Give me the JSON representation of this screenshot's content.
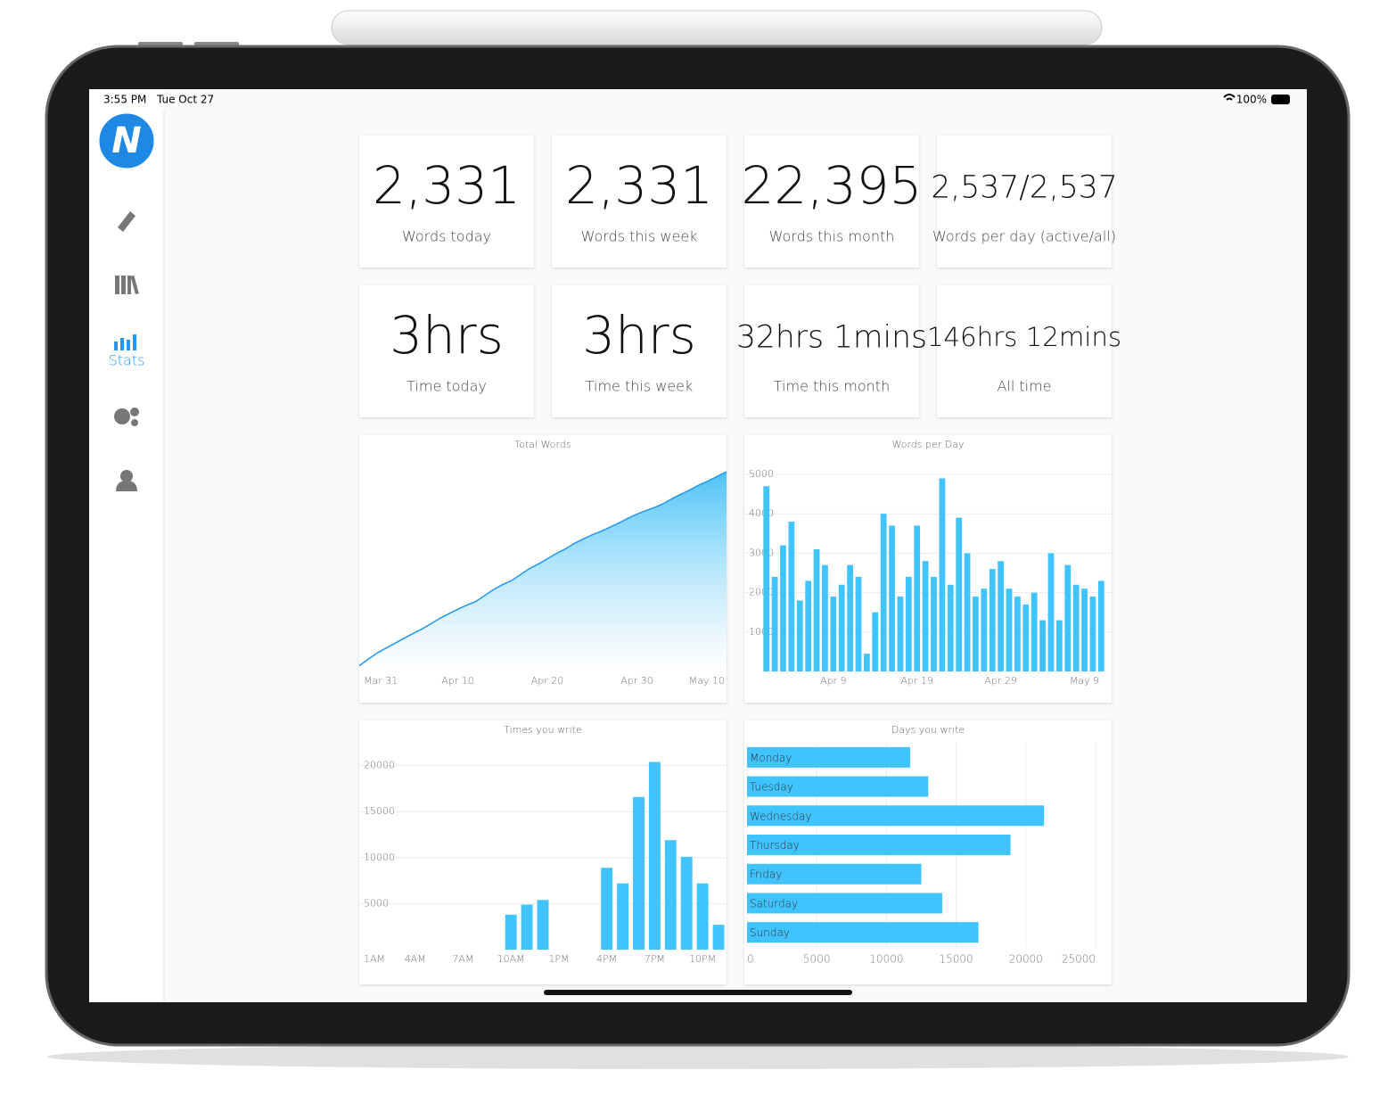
{
  "status": {
    "time": "3:55 PM",
    "date": "Tue Oct 27",
    "battery": "100%"
  },
  "sidebar": {
    "logo": "N",
    "active_item": "Stats"
  },
  "cards": [
    {
      "value": "2,331",
      "label": "Words today"
    },
    {
      "value": "2,331",
      "label": "Words this week"
    },
    {
      "value": "22,395",
      "label": "Words this month"
    },
    {
      "value": "2,537/2,537",
      "label": "Words per day (active/all)"
    },
    {
      "value": "3hrs",
      "label": "Time today"
    },
    {
      "value": "3hrs",
      "label": "Time this week"
    },
    {
      "value": "32hrs 1mins",
      "label": "Time this month"
    },
    {
      "value": "146hrs 12mins",
      "label": "All time"
    }
  ],
  "chart_data": [
    {
      "type": "area",
      "title": "Total Words",
      "color": "#2196f3",
      "categories": [
        null,
        "Mar 31",
        null,
        null,
        null,
        null,
        null,
        null,
        null,
        null,
        null,
        "Apr 10",
        null,
        null,
        null,
        null,
        null,
        null,
        null,
        null,
        null,
        "Apr 20",
        null,
        null,
        null,
        null,
        null,
        null,
        null,
        null,
        null,
        "Apr 30",
        null,
        null,
        null,
        null,
        null,
        null,
        null,
        null,
        null,
        "May 10"
      ],
      "values": [
        3000,
        6500,
        9800,
        12400,
        15000,
        17600,
        20100,
        22500,
        25300,
        28200,
        30600,
        33000,
        35200,
        37100,
        40300,
        43500,
        46100,
        48200,
        51400,
        54600,
        57000,
        59800,
        62600,
        65000,
        67900,
        70300,
        72500,
        74400,
        76600,
        78800,
        81300,
        83500,
        85400,
        87100,
        89200,
        91900,
        94300,
        96600,
        99100,
        101200,
        103600,
        106000
      ],
      "ylim": [
        0,
        115000
      ]
    },
    {
      "type": "bar",
      "title": "Words per Day",
      "color": "#40c4ff",
      "categories": [
        null,
        null,
        null,
        null,
        null,
        null,
        null,
        null,
        "Apr 9",
        null,
        null,
        null,
        null,
        null,
        null,
        null,
        null,
        null,
        "Apr 19",
        null,
        null,
        null,
        null,
        null,
        null,
        null,
        null,
        null,
        "Apr 29",
        null,
        null,
        null,
        null,
        null,
        null,
        null,
        null,
        null,
        "May 9",
        null,
        null
      ],
      "values": [
        4700,
        2400,
        3200,
        3800,
        1800,
        2300,
        3100,
        2700,
        1900,
        2200,
        2700,
        2400,
        450,
        1500,
        4000,
        3700,
        1900,
        2400,
        3700,
        2800,
        2400,
        4900,
        2200,
        3900,
        3000,
        1900,
        2100,
        2600,
        2800,
        2100,
        1900,
        1700,
        2000,
        1300,
        3000,
        1300,
        2700,
        2200,
        2100,
        1900,
        2300
      ],
      "ylim": [
        0,
        5000
      ],
      "yticks": [
        1000,
        2000,
        3000,
        4000,
        5000
      ],
      "grid": true
    },
    {
      "type": "bar",
      "title": "Times you write",
      "color": "#40c4ff",
      "categories": [
        "1AM",
        null,
        null,
        "4AM",
        null,
        null,
        "7AM",
        null,
        null,
        "10AM",
        null,
        null,
        "1PM",
        null,
        null,
        "4PM",
        null,
        null,
        "7PM",
        null,
        null,
        "10PM",
        null
      ],
      "values": [
        0,
        0,
        0,
        0,
        0,
        0,
        0,
        0,
        0,
        3800,
        4900,
        5400,
        0,
        0,
        0,
        8900,
        7200,
        16600,
        20400,
        11900,
        10100,
        7200,
        2700
      ],
      "ylim": [
        0,
        22000
      ],
      "yticks": [
        5000,
        10000,
        15000,
        20000
      ],
      "grid": true
    },
    {
      "type": "barh",
      "title": "Days you write",
      "color": "#40c4ff",
      "categories": [
        "Monday",
        "Tuesday",
        "Wednesday",
        "Thursday",
        "Friday",
        "Saturday",
        "Sunday"
      ],
      "values": [
        11700,
        13000,
        21300,
        18900,
        12500,
        14000,
        16600
      ],
      "xlim": [
        0,
        25000
      ],
      "xticks": [
        0,
        5000,
        10000,
        15000,
        20000,
        25000
      ],
      "grid": true
    }
  ]
}
